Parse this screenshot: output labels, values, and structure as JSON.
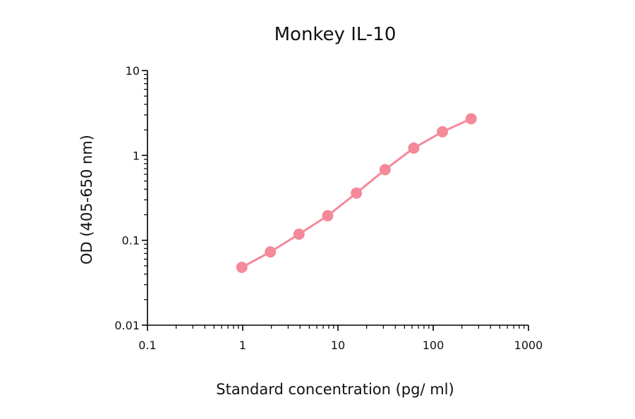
{
  "chart_data": {
    "type": "scatter",
    "title": "Monkey IL-10",
    "xlabel": "Standard concentration (pg/ ml)",
    "ylabel": "OD (405-650 nm)",
    "xscale": "log",
    "yscale": "log",
    "xlim": [
      0.1,
      1000
    ],
    "ylim": [
      0.01,
      10
    ],
    "xticks": [
      0.1,
      1,
      10,
      100,
      1000
    ],
    "xtick_labels": [
      "0.1",
      "1",
      "10",
      "100",
      "1000"
    ],
    "yticks": [
      0.01,
      0.1,
      1,
      10
    ],
    "ytick_labels": [
      "0.01",
      "0.1",
      "1",
      "10"
    ],
    "grid": false,
    "series": [
      {
        "color": "#f4899a",
        "x": [
          0.98,
          1.95,
          3.9,
          7.8,
          15.6,
          31.25,
          62.5,
          125,
          250
        ],
        "y": [
          0.048,
          0.073,
          0.118,
          0.195,
          0.36,
          0.68,
          1.22,
          1.9,
          2.7
        ]
      }
    ]
  }
}
